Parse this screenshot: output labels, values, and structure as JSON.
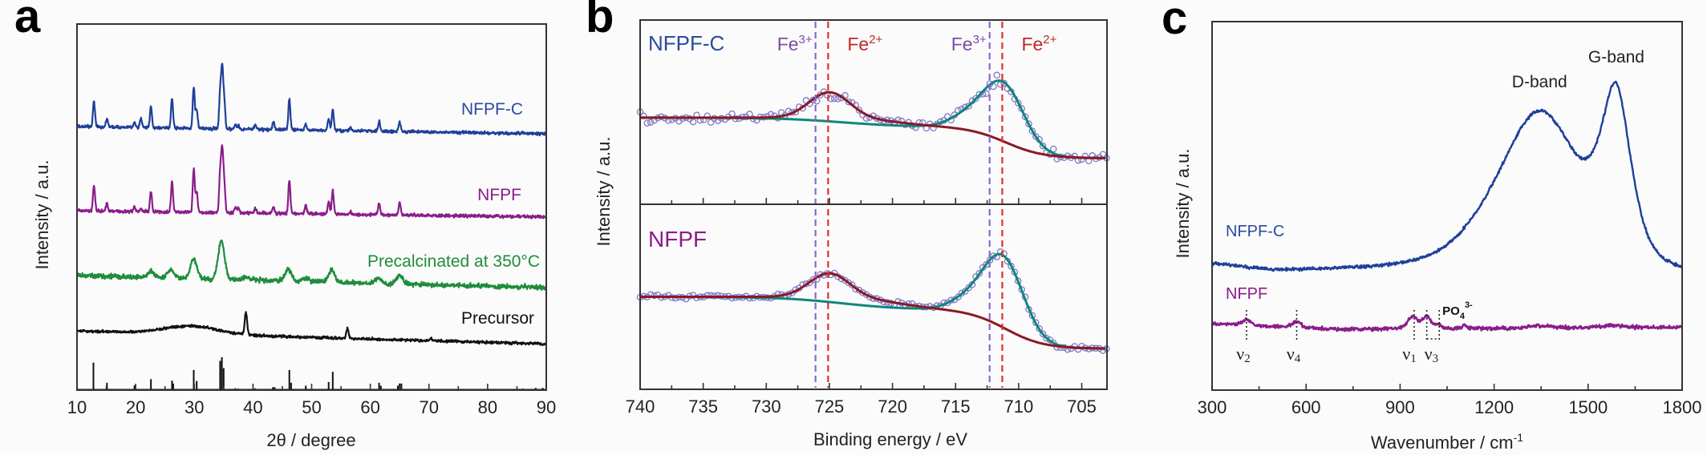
{
  "colors": {
    "nfpf_c": "#1f3f9a",
    "nfpf": "#8a1d8a",
    "precalcinated": "#1f8c3c",
    "precursor": "#111111",
    "xps_points": "#7f78c8",
    "xps_fit_teal": "#12857b",
    "xps_fit_red": "#8a1a22",
    "fe3_line": "#8a67cc",
    "fe2_line": "#e0302e"
  },
  "chart_data": [
    {
      "panel": "a",
      "type": "line",
      "xlabel": "2θ / degree",
      "ylabel": "Intensity / a.u.",
      "xlim": [
        10,
        90
      ],
      "ylim": [
        0,
        100
      ],
      "xticks": [
        "10",
        "20",
        "30",
        "40",
        "50",
        "60",
        "70",
        "80",
        "90"
      ],
      "grid": false,
      "series": [
        {
          "name": "NFPF-C",
          "color": "#1f3f9a",
          "baseline": [
            72,
            70
          ],
          "noise": 0.35,
          "peak_width": 0.17,
          "peaks": [
            [
              12.9,
              7
            ],
            [
              15.1,
              2.2
            ],
            [
              19.8,
              1.2
            ],
            [
              20.9,
              2.5
            ],
            [
              22.6,
              5.8
            ],
            [
              26.2,
              8.2
            ],
            [
              29.9,
              11.5
            ],
            [
              30.4,
              5
            ],
            [
              34.4,
              10
            ],
            [
              34.75,
              15.7
            ],
            [
              35.1,
              7.5
            ],
            [
              37,
              1.2
            ],
            [
              37.5,
              1
            ],
            [
              40.4,
              1.1
            ],
            [
              43.5,
              2.2
            ],
            [
              46.2,
              8.5
            ],
            [
              49,
              1.6
            ],
            [
              52.9,
              3.5
            ],
            [
              53.6,
              5.8
            ],
            [
              56.6,
              0.7
            ],
            [
              61.5,
              2.7
            ],
            [
              65,
              2.7
            ],
            [
              86,
              0.4
            ]
          ]
        },
        {
          "name": "NFPF",
          "color": "#8a1d8a",
          "baseline": [
            49,
            47.3
          ],
          "noise": 0.35,
          "peak_width": 0.17,
          "peaks": [
            [
              12.9,
              7
            ],
            [
              15.1,
              2.2
            ],
            [
              19.8,
              1.2
            ],
            [
              20.9,
              0.8
            ],
            [
              22.6,
              5.5
            ],
            [
              26.2,
              8.2
            ],
            [
              29.9,
              11.8
            ],
            [
              30.4,
              5.5
            ],
            [
              34.4,
              10.5
            ],
            [
              34.75,
              16.4
            ],
            [
              35.1,
              8
            ],
            [
              37,
              1.5
            ],
            [
              37.5,
              1.3
            ],
            [
              40.4,
              1.3
            ],
            [
              43.5,
              1.8
            ],
            [
              46.2,
              9
            ],
            [
              49,
              2.2
            ],
            [
              52.9,
              3.5
            ],
            [
              53.6,
              6.5
            ],
            [
              56.6,
              0.7
            ],
            [
              61.5,
              3
            ],
            [
              65,
              3.5
            ],
            [
              86,
              0.4
            ]
          ]
        },
        {
          "name": "Precalcinated at 350°C",
          "color": "#1f8c3c",
          "baseline": [
            31.3,
            28
          ],
          "noise": 0.55,
          "peak_width": 0.55,
          "peaks": [
            [
              22.6,
              1.8
            ],
            [
              26,
              2.3
            ],
            [
              29.9,
              5.5
            ],
            [
              34.6,
              10.5
            ],
            [
              38.8,
              0.8
            ],
            [
              46,
              3.2
            ],
            [
              49,
              0.8
            ],
            [
              53.4,
              3.2
            ],
            [
              61.3,
              1.3
            ],
            [
              65,
              2.3
            ]
          ]
        },
        {
          "name": "Precursor",
          "color": "#111111",
          "baseline": [
            16.2,
            12.6
          ],
          "noise": 0.3,
          "peak_width": 0.2,
          "peaks": [
            [
              29.5,
              2.2,
              4.5
            ],
            [
              38.8,
              6.2
            ],
            [
              56.1,
              2.7
            ],
            [
              70.3,
              0.6
            ]
          ]
        }
      ],
      "reference_sticks": [
        [
          12.8,
          7.5
        ],
        [
          15.1,
          2
        ],
        [
          19.8,
          1.3
        ],
        [
          22.6,
          3
        ],
        [
          26.2,
          2.6
        ],
        [
          26.4,
          1.8
        ],
        [
          29.9,
          5.5
        ],
        [
          30.4,
          2.5
        ],
        [
          34.4,
          8
        ],
        [
          34.7,
          9
        ],
        [
          35,
          6
        ],
        [
          37,
          0.5
        ],
        [
          37.5,
          0.4
        ],
        [
          40.3,
          0.5
        ],
        [
          43.4,
          0.8
        ],
        [
          43.7,
          0.8
        ],
        [
          46.2,
          5.5
        ],
        [
          46.5,
          2
        ],
        [
          49,
          1.2
        ],
        [
          52.9,
          2.2
        ],
        [
          53.6,
          5
        ],
        [
          61.5,
          2
        ],
        [
          61.8,
          1.2
        ],
        [
          64.7,
          1.2
        ],
        [
          65,
          1.8
        ],
        [
          65.3,
          1.8
        ],
        [
          86,
          0.4
        ],
        [
          88.2,
          0.6
        ],
        [
          89.4,
          0.6
        ]
      ]
    },
    {
      "panel": "b",
      "type": "scatter",
      "xlabel": "Binding energy / eV",
      "ylabel": "Intensity / a.u.",
      "xlim": [
        740,
        703
      ],
      "xticks": [
        "740",
        "735",
        "730",
        "725",
        "720",
        "715",
        "710",
        "705"
      ],
      "grid": false,
      "reference_lines": [
        {
          "label": "Fe",
          "charge": "3+",
          "x": 726.1,
          "color": "#8a67cc"
        },
        {
          "label": "Fe",
          "charge": "2+",
          "x": 725.1,
          "color": "#e0302e"
        },
        {
          "label": "Fe",
          "charge": "3+",
          "x": 712.3,
          "color": "#8a67cc"
        },
        {
          "label": "Fe",
          "charge": "2+",
          "x": 711.3,
          "color": "#e0302e"
        }
      ],
      "subplots": [
        {
          "name": "NFPF-C",
          "ylim": [
            0,
            10
          ],
          "noise": 0.22,
          "background": {
            "high": 4.7,
            "plateau": 4.2,
            "low": 2.5
          },
          "peaks": [
            {
              "center": 725.0,
              "height": 1.4,
              "width": 1.6
            },
            {
              "center": 711.3,
              "height": 2.65,
              "width": 1.6
            },
            {
              "center": 714.2,
              "height": 0.5,
              "width": 1.4
            }
          ]
        },
        {
          "name": "NFPF",
          "ylim": [
            0,
            10
          ],
          "noise": 0.1,
          "background": {
            "high": 5.0,
            "plateau": 4.3,
            "low": 2.2
          },
          "peaks": [
            {
              "center": 725.0,
              "height": 1.3,
              "width": 1.6
            },
            {
              "center": 711.3,
              "height": 3.2,
              "width": 1.55
            },
            {
              "center": 714.2,
              "height": 0.5,
              "width": 1.4
            }
          ]
        }
      ]
    },
    {
      "panel": "c",
      "type": "line",
      "xlabel": "Wavenumber / cm",
      "xlabel_sup": "-1",
      "ylabel": "Intensity / a.u.",
      "xlim": [
        300,
        1800
      ],
      "ylim": [
        0,
        100
      ],
      "xticks": [
        "300",
        "600",
        "900",
        "1200",
        "1500",
        "1800"
      ],
      "grid": false,
      "series": [
        {
          "name": "NFPF-C",
          "color": "#1f3f9a",
          "baseline": [
            [
              300,
              34
            ],
            [
              500,
              32
            ],
            [
              900,
              32
            ],
            [
              1800,
              30
            ]
          ],
          "noise": 0.35,
          "peaks": [
            [
              1345,
              44,
              150
            ],
            [
              1590,
              41,
              50
            ]
          ]
        },
        {
          "name": "NFPF",
          "color": "#8a1d8a",
          "baseline": [
            [
              300,
              18
            ],
            [
              700,
              16.5
            ],
            [
              1800,
              17
            ]
          ],
          "noise": 0.4,
          "peaks": [
            [
              410,
              1.5,
              15
            ],
            [
              570,
              1.5,
              15
            ],
            [
              940,
              3.3,
              16
            ],
            [
              985,
              3.3,
              14
            ],
            [
              1022,
              1,
              8
            ],
            [
              1105,
              0.8,
              8
            ],
            [
              1350,
              0.7,
              40
            ],
            [
              1580,
              0.7,
              40
            ]
          ]
        }
      ],
      "annotations": {
        "d_band": {
          "text": "D-band",
          "x": 1345
        },
        "g_band": {
          "text": "G-band",
          "x": 1590
        },
        "modes": [
          {
            "symbol": "ν",
            "sub": "2",
            "x": 410
          },
          {
            "symbol": "ν",
            "sub": "4",
            "x": 570
          },
          {
            "symbol": "ν",
            "sub": "1",
            "x": 940
          },
          {
            "symbol": "ν",
            "sub": "3",
            "x": 1010
          }
        ],
        "mode_lines": [
          410,
          570,
          945,
          985,
          1025
        ],
        "po4": {
          "text": "PO",
          "sub": "4",
          "sup": "3-"
        }
      }
    }
  ],
  "panels": {
    "a": "a",
    "b": "b",
    "c": "c"
  }
}
